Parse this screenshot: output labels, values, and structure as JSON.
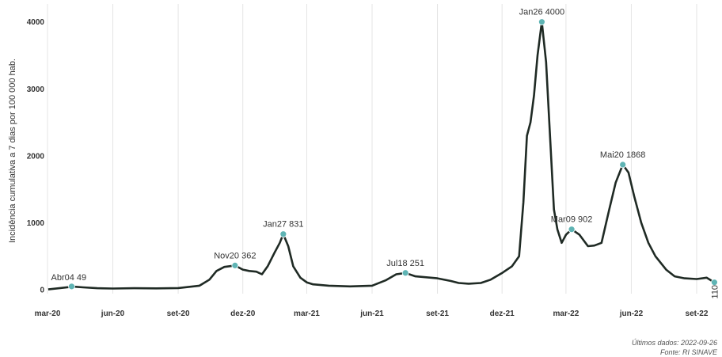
{
  "chart_data": {
    "type": "line",
    "ylabel": "Incidência cumulativa a 7 dias por 100 000 hab.",
    "ylim": [
      0,
      4150
    ],
    "yticks": [
      0,
      1000,
      2000,
      3000,
      4000
    ],
    "xlim": [
      "2020-03-01",
      "2022-09-30"
    ],
    "xticks": [
      {
        "date": "2020-03-01",
        "label": "mar-20"
      },
      {
        "date": "2020-06-01",
        "label": "jun-20"
      },
      {
        "date": "2020-09-01",
        "label": "set-20"
      },
      {
        "date": "2020-12-01",
        "label": "dez-20"
      },
      {
        "date": "2021-03-01",
        "label": "mar-21"
      },
      {
        "date": "2021-06-01",
        "label": "jun-21"
      },
      {
        "date": "2021-09-01",
        "label": "set-21"
      },
      {
        "date": "2021-12-01",
        "label": "dez-21"
      },
      {
        "date": "2022-03-01",
        "label": "mar-22"
      },
      {
        "date": "2022-06-01",
        "label": "jun-22"
      },
      {
        "date": "2022-09-01",
        "label": "set-22"
      }
    ],
    "grid": {
      "vertical": true,
      "horizontal": false
    },
    "line_color": "#1f2a24",
    "marker_color": "#5fb4b4",
    "points": [
      [
        "2020-03-02",
        5
      ],
      [
        "2020-03-15",
        20
      ],
      [
        "2020-03-30",
        38
      ],
      [
        "2020-04-04",
        49
      ],
      [
        "2020-04-20",
        35
      ],
      [
        "2020-05-10",
        22
      ],
      [
        "2020-06-01",
        18
      ],
      [
        "2020-07-01",
        22
      ],
      [
        "2020-08-01",
        20
      ],
      [
        "2020-09-01",
        25
      ],
      [
        "2020-10-01",
        60
      ],
      [
        "2020-10-15",
        150
      ],
      [
        "2020-10-25",
        280
      ],
      [
        "2020-11-05",
        340
      ],
      [
        "2020-11-20",
        362
      ],
      [
        "2020-12-01",
        300
      ],
      [
        "2020-12-10",
        280
      ],
      [
        "2020-12-20",
        270
      ],
      [
        "2020-12-28",
        230
      ],
      [
        "2021-01-05",
        350
      ],
      [
        "2021-01-15",
        560
      ],
      [
        "2021-01-22",
        700
      ],
      [
        "2021-01-27",
        831
      ],
      [
        "2021-02-03",
        650
      ],
      [
        "2021-02-10",
        350
      ],
      [
        "2021-02-20",
        180
      ],
      [
        "2021-03-01",
        110
      ],
      [
        "2021-03-10",
        80
      ],
      [
        "2021-04-01",
        60
      ],
      [
        "2021-05-01",
        50
      ],
      [
        "2021-06-01",
        60
      ],
      [
        "2021-06-20",
        140
      ],
      [
        "2021-07-05",
        230
      ],
      [
        "2021-07-18",
        251
      ],
      [
        "2021-08-01",
        200
      ],
      [
        "2021-09-01",
        170
      ],
      [
        "2021-09-20",
        130
      ],
      [
        "2021-10-01",
        100
      ],
      [
        "2021-10-15",
        90
      ],
      [
        "2021-11-01",
        100
      ],
      [
        "2021-11-15",
        150
      ],
      [
        "2021-12-01",
        250
      ],
      [
        "2021-12-15",
        350
      ],
      [
        "2021-12-25",
        500
      ],
      [
        "2021-12-31",
        1300
      ],
      [
        "2022-01-05",
        2300
      ],
      [
        "2022-01-10",
        2500
      ],
      [
        "2022-01-15",
        2900
      ],
      [
        "2022-01-20",
        3500
      ],
      [
        "2022-01-26",
        4000
      ],
      [
        "2022-02-01",
        3400
      ],
      [
        "2022-02-07",
        2200
      ],
      [
        "2022-02-12",
        1200
      ],
      [
        "2022-02-17",
        900
      ],
      [
        "2022-02-23",
        700
      ],
      [
        "2022-03-01",
        820
      ],
      [
        "2022-03-09",
        902
      ],
      [
        "2022-03-20",
        820
      ],
      [
        "2022-04-01",
        650
      ],
      [
        "2022-04-10",
        660
      ],
      [
        "2022-04-20",
        700
      ],
      [
        "2022-05-01",
        1200
      ],
      [
        "2022-05-10",
        1600
      ],
      [
        "2022-05-20",
        1868
      ],
      [
        "2022-05-28",
        1750
      ],
      [
        "2022-06-05",
        1400
      ],
      [
        "2022-06-15",
        1000
      ],
      [
        "2022-06-25",
        700
      ],
      [
        "2022-07-05",
        500
      ],
      [
        "2022-07-20",
        300
      ],
      [
        "2022-08-01",
        200
      ],
      [
        "2022-08-15",
        170
      ],
      [
        "2022-09-01",
        160
      ],
      [
        "2022-09-15",
        180
      ],
      [
        "2022-09-26",
        110
      ]
    ],
    "annotations": [
      {
        "date": "2020-04-04",
        "value": 49,
        "label": "Abr04 49",
        "pos": "above-right"
      },
      {
        "date": "2020-11-20",
        "value": 362,
        "label": "Nov20 362",
        "pos": "above"
      },
      {
        "date": "2021-01-27",
        "value": 831,
        "label": "Jan27 831",
        "pos": "above"
      },
      {
        "date": "2021-07-18",
        "value": 251,
        "label": "Jul18 251",
        "pos": "above"
      },
      {
        "date": "2022-01-26",
        "value": 4000,
        "label": "Jan26 4000",
        "pos": "above"
      },
      {
        "date": "2022-03-09",
        "value": 902,
        "label": "Mar09 902",
        "pos": "above"
      },
      {
        "date": "2022-05-20",
        "value": 1868,
        "label": "Mai20 1868",
        "pos": "above"
      },
      {
        "date": "2022-09-26",
        "value": 110,
        "label": "110",
        "pos": "rotated"
      }
    ]
  },
  "caption": {
    "line1": "Últimos dados: 2022-09-26",
    "line2": "Fonte: RI SINAVE"
  }
}
